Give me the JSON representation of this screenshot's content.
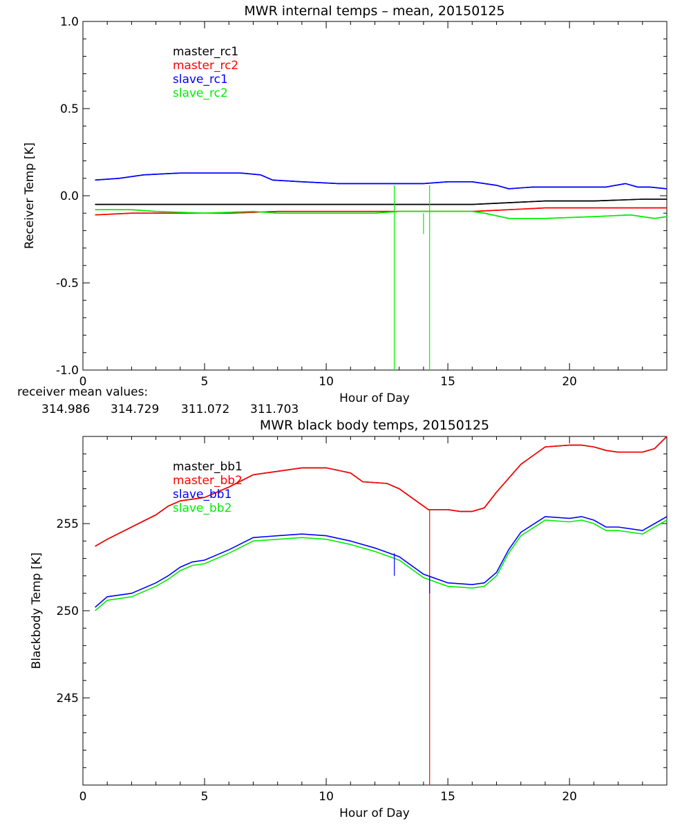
{
  "chart_data": [
    {
      "type": "line",
      "title": "MWR internal temps – mean, 20150125",
      "xlabel": "Hour of Day",
      "ylabel": "Receiver Temp [K]",
      "xlim": [
        0,
        24
      ],
      "ylim": [
        -1.0,
        1.0
      ],
      "xticks": [
        0,
        5,
        10,
        15,
        20
      ],
      "yticks": [
        -1.0,
        -0.5,
        0.0,
        0.5,
        1.0
      ],
      "ytick_labels": [
        "-1.0",
        "-0.5",
        "0.0",
        "0.5",
        "1.0"
      ],
      "legend_position": "top-left",
      "series": [
        {
          "name": "master_rc1",
          "color": "#000000",
          "x": [
            0.5,
            2,
            4,
            6,
            8,
            10,
            12,
            14,
            16,
            17.5,
            19,
            21,
            23,
            24
          ],
          "y": [
            -0.05,
            -0.05,
            -0.05,
            -0.05,
            -0.05,
            -0.05,
            -0.05,
            -0.05,
            -0.05,
            -0.04,
            -0.03,
            -0.03,
            -0.02,
            -0.02
          ]
        },
        {
          "name": "master_rc2",
          "color": "#ff0000",
          "x": [
            0.5,
            2,
            4,
            6,
            8,
            10,
            12,
            14,
            16,
            17.5,
            19,
            21,
            23,
            24
          ],
          "y": [
            -0.11,
            -0.1,
            -0.1,
            -0.1,
            -0.09,
            -0.09,
            -0.09,
            -0.09,
            -0.09,
            -0.08,
            -0.07,
            -0.07,
            -0.07,
            -0.07
          ]
        },
        {
          "name": "slave_rc1",
          "color": "#0000ff",
          "x": [
            0.5,
            1.5,
            2.5,
            4,
            5,
            6.5,
            7.3,
            7.8,
            9,
            10.5,
            12,
            13,
            14,
            15,
            16,
            17,
            17.5,
            18.5,
            20,
            21.5,
            22.3,
            22.8,
            23.3,
            24
          ],
          "y": [
            0.09,
            0.1,
            0.12,
            0.13,
            0.13,
            0.13,
            0.12,
            0.09,
            0.08,
            0.07,
            0.07,
            0.07,
            0.07,
            0.08,
            0.08,
            0.06,
            0.04,
            0.05,
            0.05,
            0.05,
            0.07,
            0.05,
            0.05,
            0.04
          ]
        },
        {
          "name": "slave_rc2",
          "color": "#00ee00",
          "x": [
            0.5,
            2,
            3,
            5,
            7,
            8,
            10,
            12,
            13,
            14,
            16,
            16.5,
            17.5,
            19,
            21,
            22.5,
            23.5,
            24
          ],
          "y": [
            -0.08,
            -0.08,
            -0.09,
            -0.1,
            -0.09,
            -0.1,
            -0.1,
            -0.1,
            -0.09,
            -0.09,
            -0.09,
            -0.1,
            -0.13,
            -0.13,
            -0.12,
            -0.11,
            -0.13,
            -0.12
          ]
        }
      ],
      "spikes": [
        {
          "series": "slave_rc2",
          "x": 12.8,
          "y_top": 0.06,
          "y_bottom": -1.0
        },
        {
          "series": "slave_rc2",
          "x": 14.25,
          "y_top": 0.06,
          "y_bottom": -1.0
        },
        {
          "series": "slave_rc2",
          "x": 14.0,
          "y_top": -0.1,
          "y_bottom": -0.22
        }
      ],
      "annotation_label": "receiver mean values:",
      "mean_values": [
        {
          "text": "314.986",
          "color": "#000000"
        },
        {
          "text": "314.729",
          "color": "#ff0000"
        },
        {
          "text": "311.072",
          "color": "#0000ff"
        },
        {
          "text": "311.703",
          "color": "#00ee00"
        }
      ]
    },
    {
      "type": "line",
      "title": "MWR black body temps, 20150125",
      "xlabel": "Hour of Day",
      "ylabel": "Blackbody Temp [K]",
      "xlim": [
        0,
        24
      ],
      "ylim": [
        240,
        260
      ],
      "xticks": [
        0,
        5,
        10,
        15,
        20
      ],
      "yticks": [
        245,
        250,
        255
      ],
      "ytick_labels": [
        "245",
        "250",
        "255"
      ],
      "legend_position": "top-left",
      "series": [
        {
          "name": "master_bb1",
          "color": "#000000",
          "x": [
            0.5,
            1,
            2,
            3,
            3.5,
            4,
            4.5,
            5,
            6,
            7,
            8,
            9,
            10,
            11,
            11.5,
            12.5,
            13,
            14.2,
            15,
            15.5,
            16,
            16.5,
            17,
            18,
            19,
            20,
            20.5,
            21,
            21.5,
            22,
            23,
            23.5,
            24
          ],
          "y": [
            253.7,
            254.1,
            254.8,
            255.5,
            256.0,
            256.3,
            256.4,
            256.5,
            257.1,
            257.8,
            258.0,
            258.2,
            258.2,
            257.9,
            257.4,
            257.3,
            257.0,
            255.8,
            255.8,
            255.7,
            255.7,
            255.9,
            256.8,
            258.4,
            259.4,
            259.5,
            259.5,
            259.4,
            259.2,
            259.1,
            259.1,
            259.3,
            260.0
          ]
        },
        {
          "name": "master_bb2",
          "color": "#ff0000",
          "x": [
            0.5,
            1,
            2,
            3,
            3.5,
            4,
            4.5,
            5,
            6,
            7,
            8,
            9,
            10,
            11,
            11.5,
            12.5,
            13,
            14.2,
            15,
            15.5,
            16,
            16.5,
            17,
            18,
            19,
            20,
            20.5,
            21,
            21.5,
            22,
            23,
            23.5,
            24
          ],
          "y": [
            253.7,
            254.1,
            254.8,
            255.5,
            256.0,
            256.3,
            256.4,
            256.5,
            257.1,
            257.8,
            258.0,
            258.2,
            258.2,
            257.9,
            257.4,
            257.3,
            257.0,
            255.8,
            255.8,
            255.7,
            255.7,
            255.9,
            256.8,
            258.4,
            259.4,
            259.5,
            259.5,
            259.4,
            259.2,
            259.1,
            259.1,
            259.3,
            260.0
          ]
        },
        {
          "name": "slave_bb1",
          "color": "#0000ff",
          "x": [
            0.5,
            1,
            2,
            3,
            3.5,
            4,
            4.5,
            5,
            6,
            7,
            8,
            9,
            10,
            11,
            12,
            13,
            14,
            15,
            16,
            16.5,
            17,
            17.5,
            18,
            19,
            20,
            20.5,
            21,
            21.5,
            22,
            23,
            23.5,
            24
          ],
          "y": [
            250.2,
            250.8,
            251.0,
            251.6,
            252.0,
            252.5,
            252.8,
            252.9,
            253.5,
            254.2,
            254.3,
            254.4,
            254.3,
            254.0,
            253.6,
            253.1,
            252.1,
            251.6,
            251.5,
            251.6,
            252.2,
            253.5,
            254.5,
            255.4,
            255.3,
            255.4,
            255.2,
            254.8,
            254.8,
            254.6,
            255.0,
            255.4
          ]
        },
        {
          "name": "slave_bb2",
          "color": "#00ee00",
          "x": [
            0.5,
            1,
            2,
            3,
            3.5,
            4,
            4.5,
            5,
            6,
            7,
            8,
            9,
            10,
            11,
            12,
            13,
            14,
            15,
            16,
            16.5,
            17,
            17.5,
            18,
            19,
            20,
            20.5,
            21,
            21.5,
            22,
            23,
            23.5,
            24
          ],
          "y": [
            250.0,
            250.6,
            250.8,
            251.4,
            251.8,
            252.3,
            252.6,
            252.7,
            253.3,
            254.0,
            254.1,
            254.2,
            254.1,
            253.8,
            253.4,
            252.9,
            251.9,
            251.4,
            251.3,
            251.4,
            252.0,
            253.3,
            254.3,
            255.2,
            255.1,
            255.2,
            255.0,
            254.6,
            254.6,
            254.4,
            254.8,
            255.2
          ]
        }
      ],
      "spikes": [
        {
          "series": "master_bb2",
          "x": 14.25,
          "y_top": 255.8,
          "y_bottom": 240
        },
        {
          "series": "slave_bb1",
          "x": 12.8,
          "y_top": 253.3,
          "y_bottom": 252.0
        },
        {
          "series": "slave_bb1",
          "x": 14.25,
          "y_top": 252.0,
          "y_bottom": 251.0
        }
      ]
    }
  ]
}
